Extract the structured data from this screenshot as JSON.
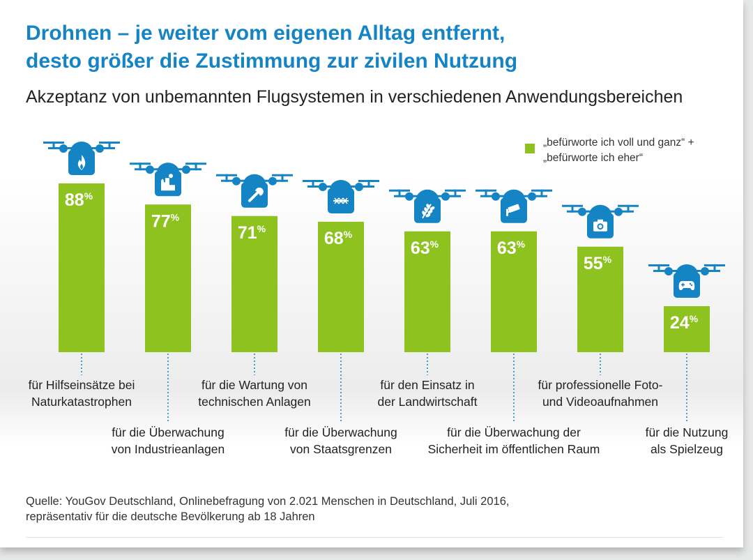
{
  "title": {
    "line1": "Drohnen – je weiter vom eigenen Alltag entfernt,",
    "line2": "desto größer die Zustimmung zur zivilen Nutzung"
  },
  "subtitle": "Akzeptanz von unbemannten Flugsystemen in verschiedenen Anwendungsbereichen",
  "legend": {
    "line1": "„befürworte ich voll und ganz“ +",
    "line2": "„befürworte ich eher“"
  },
  "source": {
    "line1": "Quelle: YouGov Deutschland, Onlinebefragung von 2.021 Menschen in Deutschland, Juli 2016,",
    "line2": "repräsentativ für die deutsche Bevölkerung ab 18 Jahren"
  },
  "colors": {
    "title": "#1584c4",
    "bar": "#8dc21f",
    "drone": "#1584c4",
    "label_text": "#ffffff"
  },
  "chart_data": {
    "type": "bar",
    "unit": "%",
    "ylim": [
      0,
      100
    ],
    "categories": [
      [
        "für Hilfseinsätze bei",
        "Naturkatastrophen"
      ],
      [
        "für die Überwachung",
        "von Industrieanlagen"
      ],
      [
        "für die Wartung von",
        "technischen Anlagen"
      ],
      [
        "für die Überwachung",
        "von Staatsgrenzen"
      ],
      [
        "für den Einsatz in",
        "der Landwirtschaft"
      ],
      [
        "für die Überwachung der",
        "Sicherheit im öffentlichen Raum"
      ],
      [
        "für professionelle Foto-",
        "und Videoaufnahmen"
      ],
      [
        "für die Nutzung",
        "als Spielzeug"
      ]
    ],
    "values": [
      88,
      77,
      71,
      68,
      63,
      63,
      55,
      24
    ],
    "icons": [
      "fire-icon",
      "factory-icon",
      "wrench-icon",
      "barbed-wire-icon",
      "wheat-icon",
      "cctv-camera-icon",
      "photo-camera-icon",
      "gamepad-icon"
    ],
    "legend": "top-right",
    "grid": false
  }
}
